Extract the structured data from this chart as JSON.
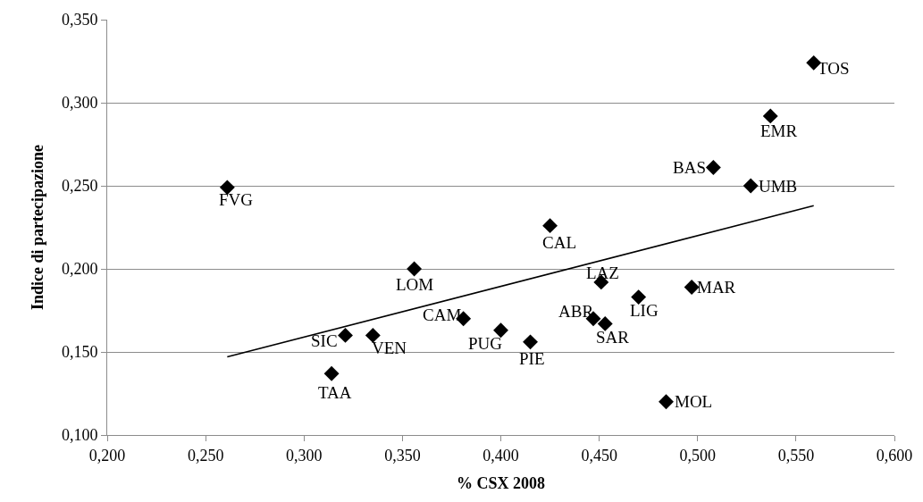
{
  "chart_data": {
    "type": "scatter",
    "xlabel": "% CSX 2008",
    "ylabel": "Indice di partecipazione",
    "xlim": [
      0.2,
      0.6
    ],
    "xticks": [
      {
        "value": 0.2,
        "label": "0,200"
      },
      {
        "value": 0.25,
        "label": "0,250"
      },
      {
        "value": 0.3,
        "label": "0,300"
      },
      {
        "value": 0.35,
        "label": "0,350"
      },
      {
        "value": 0.4,
        "label": "0,400"
      },
      {
        "value": 0.45,
        "label": "0,450"
      },
      {
        "value": 0.5,
        "label": "0,500"
      },
      {
        "value": 0.55,
        "label": "0,550"
      },
      {
        "value": 0.6,
        "label": "0,600"
      }
    ],
    "ylim": [
      0.1,
      0.35
    ],
    "yticks": [
      {
        "value": 0.1,
        "label": "0,100"
      },
      {
        "value": 0.15,
        "label": "0,150"
      },
      {
        "value": 0.2,
        "label": "0,200"
      },
      {
        "value": 0.25,
        "label": "0,250"
      },
      {
        "value": 0.3,
        "label": "0,300"
      },
      {
        "value": 0.35,
        "label": "0,350"
      }
    ],
    "grid": "y",
    "marker": "diamond",
    "series": [
      {
        "color": "#000000",
        "x": [
          0.261,
          0.356,
          0.559,
          0.537,
          0.508,
          0.527,
          0.425,
          0.381,
          0.321,
          0.335,
          0.314,
          0.4,
          0.415,
          0.447,
          0.453,
          0.451,
          0.47,
          0.497,
          0.484
        ],
        "values": [
          0.249,
          0.2,
          0.324,
          0.292,
          0.261,
          0.25,
          0.226,
          0.17,
          0.16,
          0.16,
          0.137,
          0.163,
          0.156,
          0.17,
          0.167,
          0.192,
          0.183,
          0.189,
          0.12
        ]
      },
      {
        "type": "line",
        "color": "#000000",
        "marker": "none",
        "x": [
          0.261,
          0.559
        ],
        "values": [
          0.147,
          0.238
        ]
      }
    ],
    "annotations": [
      {
        "text": "FVG",
        "x": 0.261,
        "y": 0.249
      },
      {
        "text": "LOM",
        "x": 0.356,
        "y": 0.2
      },
      {
        "text": "TOS",
        "x": 0.559,
        "y": 0.324
      },
      {
        "text": "EMR",
        "x": 0.537,
        "y": 0.292
      },
      {
        "text": "BAS",
        "x": 0.508,
        "y": 0.261
      },
      {
        "text": "UMB",
        "x": 0.527,
        "y": 0.25
      },
      {
        "text": "CAL",
        "x": 0.425,
        "y": 0.226
      },
      {
        "text": "CAM",
        "x": 0.381,
        "y": 0.17
      },
      {
        "text": "SIC",
        "x": 0.321,
        "y": 0.16
      },
      {
        "text": "VEN",
        "x": 0.335,
        "y": 0.16
      },
      {
        "text": "TAA",
        "x": 0.314,
        "y": 0.137
      },
      {
        "text": "PUG",
        "x": 0.4,
        "y": 0.163
      },
      {
        "text": "PIE",
        "x": 0.415,
        "y": 0.156
      },
      {
        "text": "ABR",
        "x": 0.447,
        "y": 0.17
      },
      {
        "text": "SAR",
        "x": 0.453,
        "y": 0.167
      },
      {
        "text": "LAZ",
        "x": 0.451,
        "y": 0.192
      },
      {
        "text": "LIG",
        "x": 0.47,
        "y": 0.183
      },
      {
        "text": "MAR",
        "x": 0.497,
        "y": 0.189
      },
      {
        "text": "MOL",
        "x": 0.484,
        "y": 0.12
      }
    ]
  }
}
